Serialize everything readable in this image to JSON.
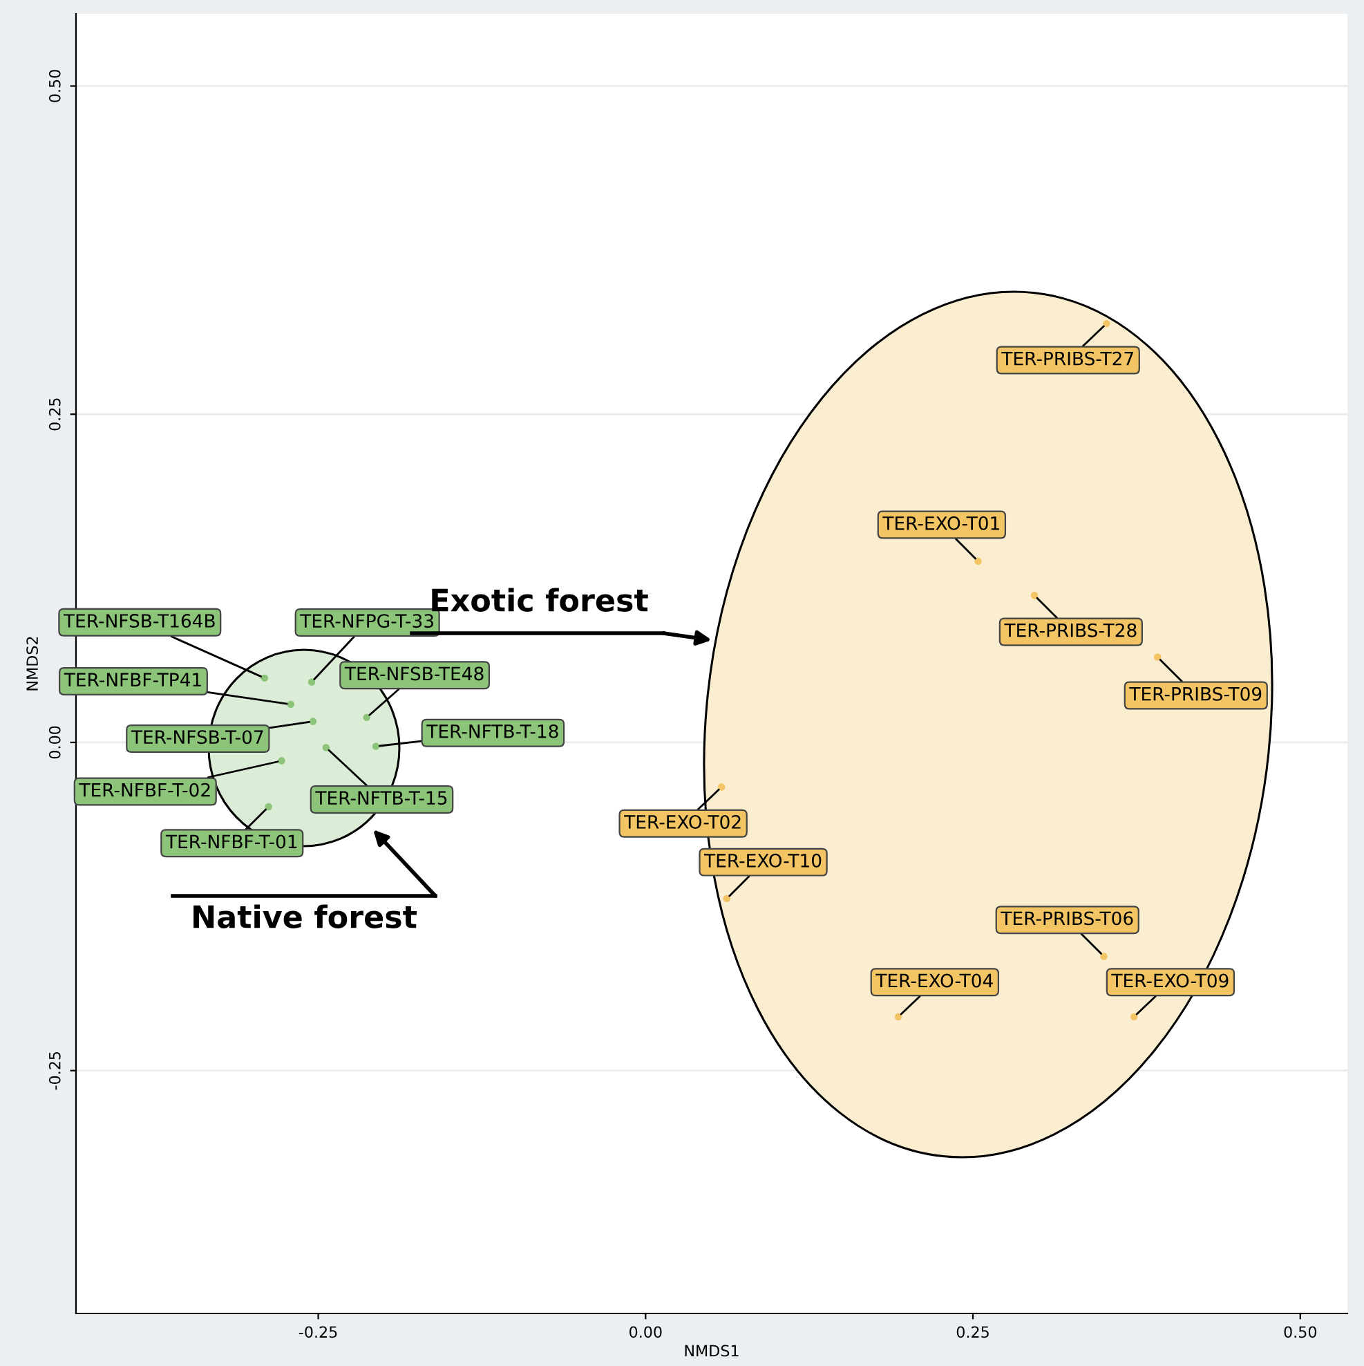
{
  "chart_data": {
    "type": "scatter",
    "xlabel": "NMDS1",
    "ylabel": "NMDS2",
    "xlim": [
      -0.435,
      0.536
    ],
    "ylim": [
      -0.435,
      0.555
    ],
    "xticks": [
      {
        "value": -0.25,
        "label": "-0.25"
      },
      {
        "value": 0,
        "label": "0.00"
      },
      {
        "value": 0.25,
        "label": "0.25"
      },
      {
        "value": 0.5,
        "label": "0.50"
      }
    ],
    "yticks": [
      {
        "value": -0.25,
        "label": "-0.25"
      },
      {
        "value": 0,
        "label": "0.00"
      },
      {
        "value": 0.25,
        "label": "0.25"
      },
      {
        "value": 0.5,
        "label": "0.50"
      }
    ],
    "grid": "y",
    "marker": "circle",
    "annotations": [
      "Exotic forest",
      "Native forest"
    ],
    "series": [
      {
        "color": "#8cc47a",
        "x": [
          -0.291,
          -0.255,
          -0.271,
          -0.213,
          -0.254,
          -0.206,
          -0.244,
          -0.278,
          -0.288
        ],
        "values": [
          0.049,
          0.046,
          0.029,
          0.019,
          0.016,
          -0.003,
          -0.004,
          -0.014,
          -0.049
        ],
        "value_labels": [
          "TER-NFSB-T164B",
          "TER-NFPG-T-33",
          "TER-NFBF-TP41",
          "TER-NFSB-TE48",
          "TER-NFSB-T-07",
          "TER-NFTB-T-18",
          "TER-NFTB-T-15",
          "TER-NFBF-T-02",
          "TER-NFBF-T-01"
        ]
      },
      {
        "color": "#f2c464",
        "x": [
          0.352,
          0.254,
          0.297,
          0.391,
          0.058,
          0.062,
          0.35,
          0.193,
          0.373
        ],
        "values": [
          0.319,
          0.138,
          0.112,
          0.065,
          -0.034,
          -0.119,
          -0.163,
          -0.209,
          -0.209
        ],
        "value_labels": [
          "TER-PRIBS-T27",
          "TER-EXO-T01",
          "TER-PRIBS-T28",
          "TER-PRIBS-T09",
          "TER-EXO-T02",
          "TER-EXO-T10",
          "TER-PRIBS-T06",
          "TER-EXO-T04",
          "TER-EXO-T09"
        ]
      }
    ]
  }
}
